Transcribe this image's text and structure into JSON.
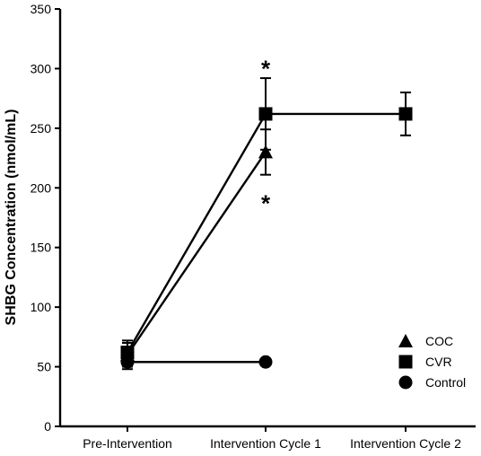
{
  "chart_data": {
    "type": "line",
    "categories": [
      "Pre-Intervention",
      "Intervention Cycle 1",
      "Intervention Cycle 2"
    ],
    "ylabel": "SHBG Concentration (nmol/mL)",
    "xlabel": "",
    "ylim": [
      0,
      350
    ],
    "yticks": [
      0,
      50,
      100,
      150,
      200,
      250,
      300,
      350
    ],
    "grid": false,
    "legend_position": "bottom-right",
    "series": [
      {
        "name": "COC",
        "marker": "triangle",
        "values": [
          60,
          230,
          null
        ],
        "errors": [
          10,
          19,
          null
        ]
      },
      {
        "name": "CVR",
        "marker": "square",
        "values": [
          62,
          262,
          262
        ],
        "errors": [
          10,
          30,
          18
        ]
      },
      {
        "name": "Control",
        "marker": "circle",
        "values": [
          54,
          54,
          null
        ],
        "errors": [
          6,
          0,
          null
        ]
      }
    ],
    "annotations": [
      {
        "text": "*",
        "category": 1,
        "y": 306
      },
      {
        "text": "*",
        "category": 1,
        "y": 193
      }
    ]
  }
}
